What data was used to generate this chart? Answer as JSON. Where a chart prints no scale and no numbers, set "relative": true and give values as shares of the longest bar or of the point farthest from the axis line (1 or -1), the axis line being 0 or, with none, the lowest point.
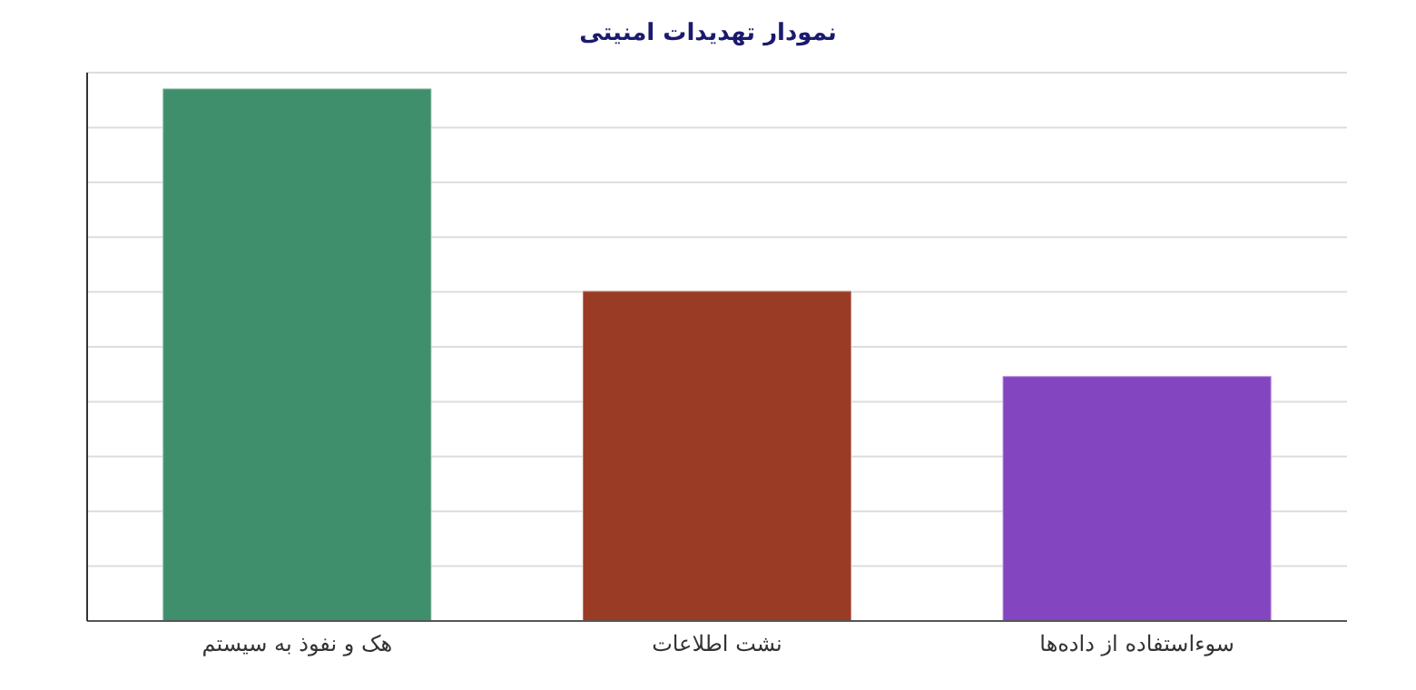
{
  "chart_data": {
    "type": "bar",
    "title": "نمودار تهدیدات امنیتی",
    "categories": [
      "هک و نفوذ به سیستم",
      "نشت اطلاعات",
      "سوءاستفاده از داده‌ها"
    ],
    "values": [
      1,
      0.62,
      0.46
    ],
    "colors": [
      "#3f8f6c",
      "#9a3b25",
      "#8445c0"
    ],
    "relative": true,
    "grid": "y"
  }
}
